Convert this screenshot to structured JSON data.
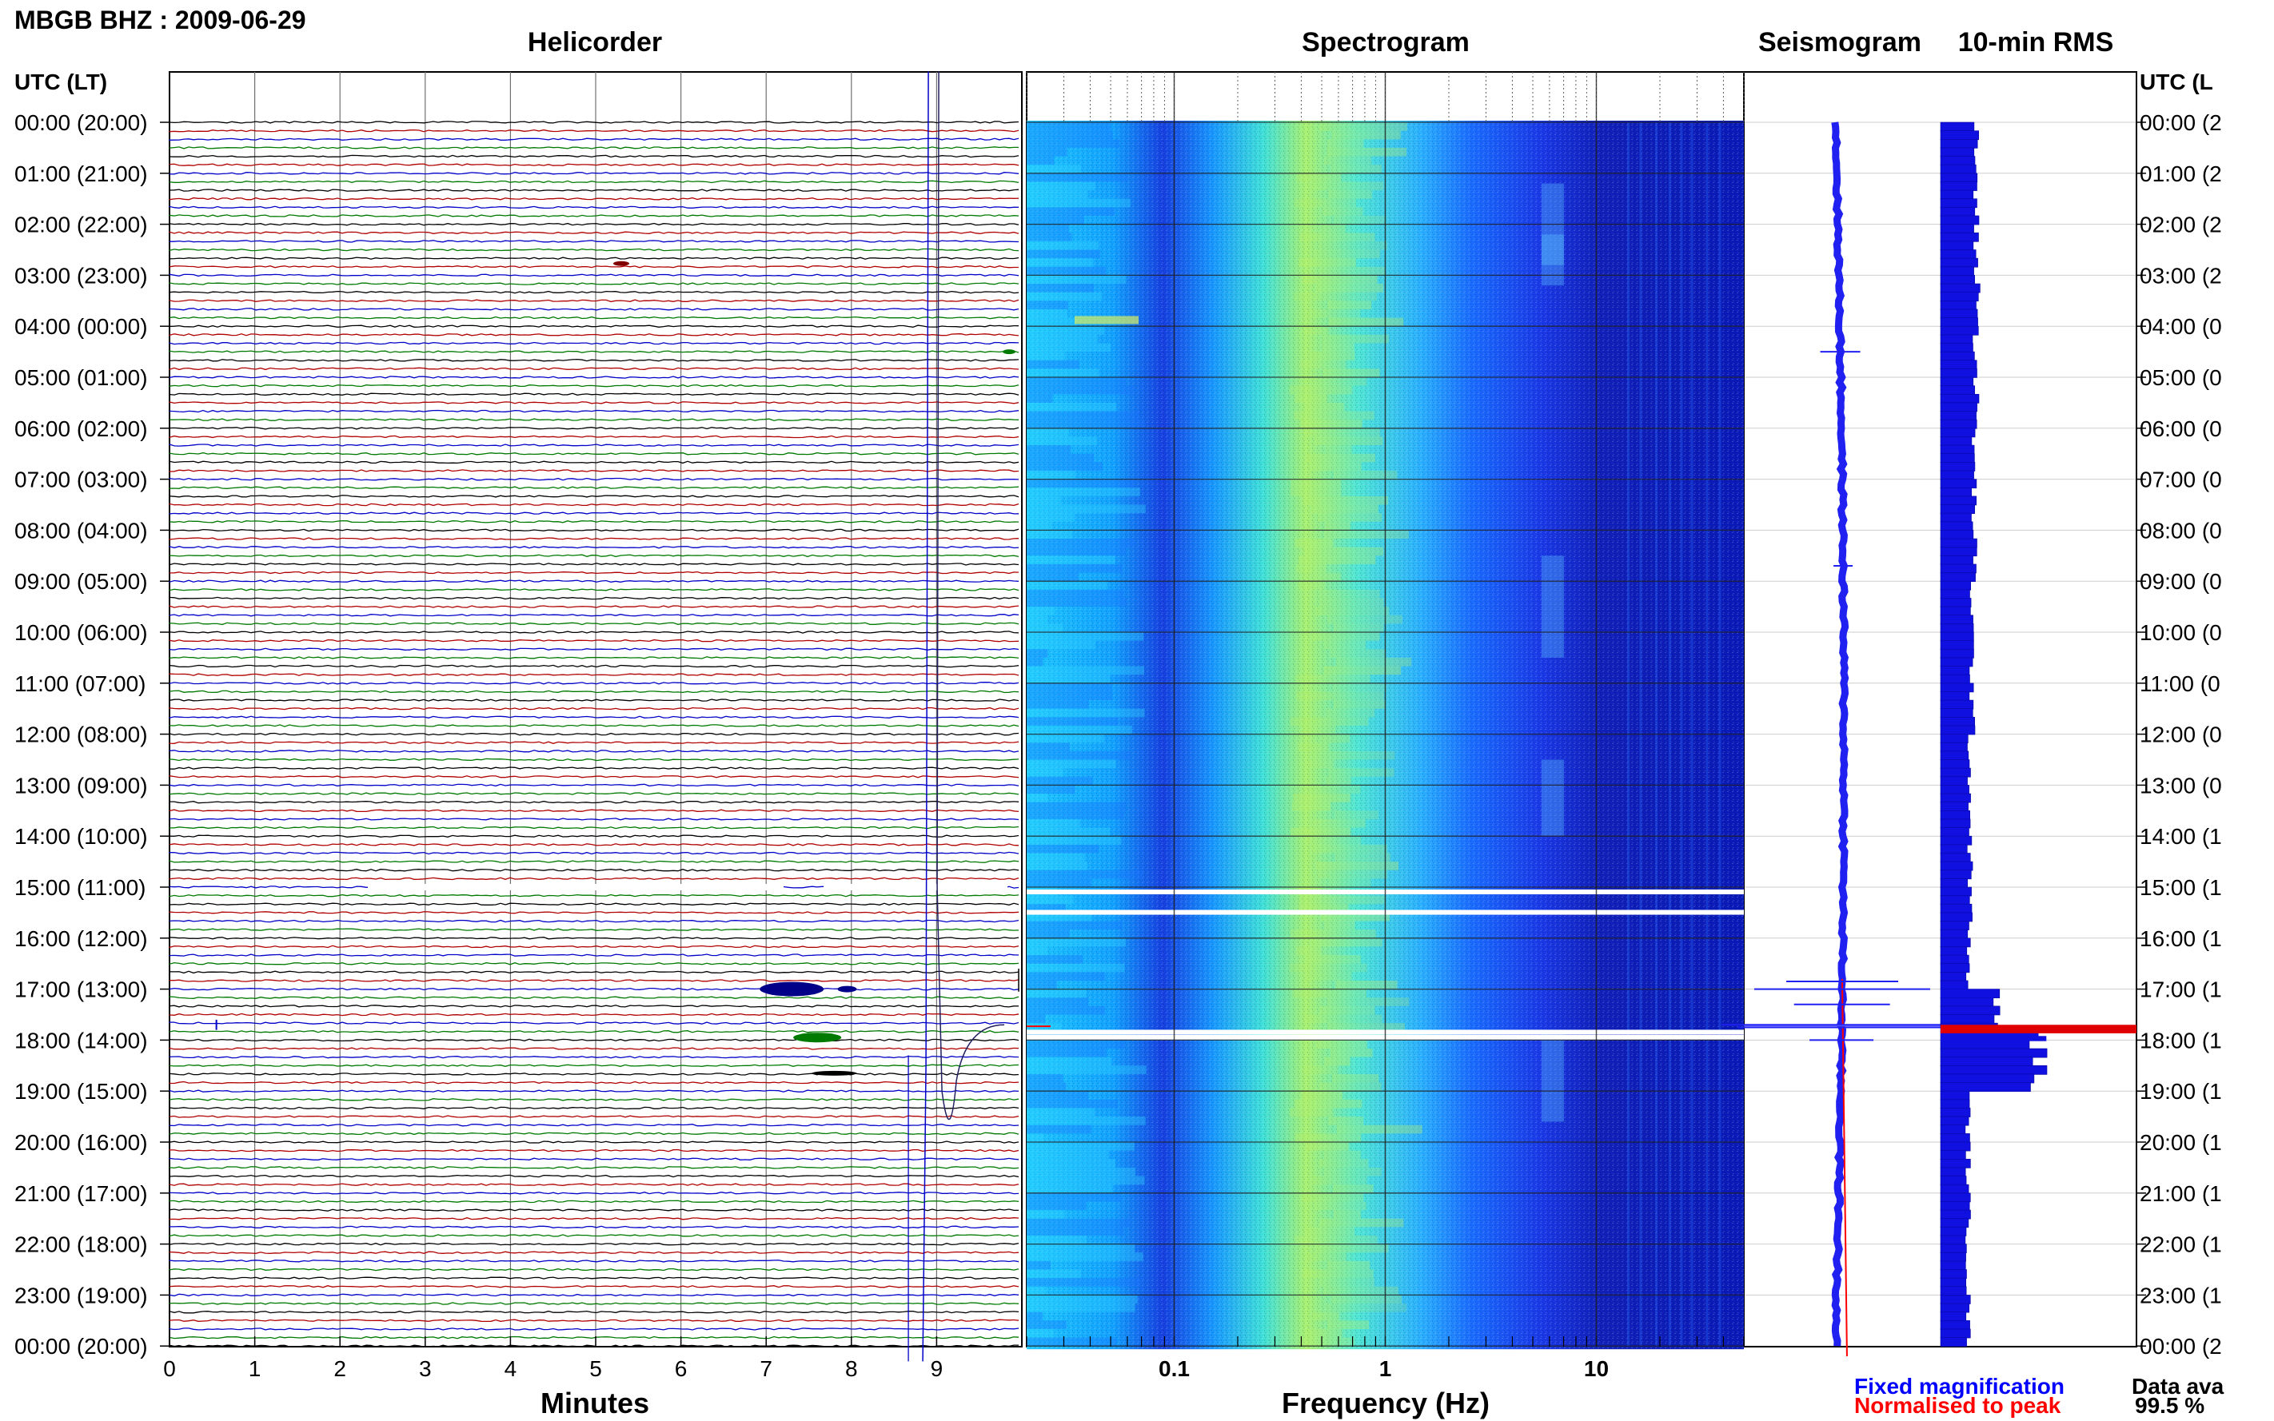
{
  "header": {
    "station_title": "MBGB BHZ : 2009-06-29",
    "panel_titles": {
      "helicorder": "Helicorder",
      "spectrogram": "Spectrogram",
      "seismogram": "Seismogram",
      "rms": "10-min RMS"
    },
    "left_axis_label": "UTC (LT)",
    "right_axis_label": "UTC (L"
  },
  "footer": {
    "x_label_minutes": "Minutes",
    "x_label_frequency": "Frequency (Hz)",
    "legend_fixed": "Fixed magnification",
    "legend_normalised": "Normalised to peak",
    "data_availability_label": "Data ava",
    "data_availability_value": "99.5 %"
  },
  "colors": {
    "trace_black": "#000000",
    "trace_red": "#b00000",
    "trace_blue": "#0000c8",
    "trace_green": "#007a00",
    "spectro_low": "#1a3cff",
    "spectro_mid": "#00d8e8",
    "spectro_high": "#c8f05a",
    "rms_bar": "#1010e0",
    "rms_peak": "#e00000",
    "gap": "#ffffff"
  },
  "chart_data": [
    {
      "type": "line",
      "name": "helicorder",
      "title": "Helicorder",
      "xlabel": "Minutes",
      "ylabel": "UTC (LT)",
      "x_ticks": [
        0,
        1,
        2,
        3,
        4,
        5,
        6,
        7,
        8,
        9
      ],
      "xlim": [
        0,
        10
      ],
      "y_tick_labels": [
        "00:00 (20:00)",
        "01:00 (21:00)",
        "02:00 (22:00)",
        "03:00 (23:00)",
        "04:00 (00:00)",
        "05:00 (01:00)",
        "06:00 (02:00)",
        "07:00 (03:00)",
        "08:00 (04:00)",
        "09:00 (05:00)",
        "10:00 (06:00)",
        "11:00 (07:00)",
        "12:00 (08:00)",
        "13:00 (09:00)",
        "14:00 (10:00)",
        "15:00 (11:00)",
        "16:00 (12:00)",
        "17:00 (13:00)",
        "18:00 (14:00)",
        "19:00 (15:00)",
        "20:00 (16:00)",
        "21:00 (17:00)",
        "22:00 (18:00)",
        "23:00 (19:00)",
        "00:00 (20:00)"
      ],
      "right_tick_labels": [
        "00:00 (2",
        "01:00 (2",
        "02:00 (2",
        "03:00 (2",
        "04:00 (0",
        "05:00 (0",
        "06:00 (0",
        "07:00 (0",
        "08:00 (0",
        "09:00 (0",
        "10:00 (0",
        "11:00 (0",
        "12:00 (0",
        "13:00 (0",
        "14:00 (1",
        "15:00 (1",
        "16:00 (1",
        "17:00 (1",
        "18:00 (1",
        "19:00 (1",
        "20:00 (1",
        "21:00 (1",
        "22:00 (1",
        "23:00 (1",
        "00:00 (2"
      ],
      "traces_per_hour": 6,
      "trace_color_cycle": [
        "black",
        "red",
        "blue",
        "green"
      ],
      "grid": true
    },
    {
      "type": "heatmap",
      "name": "spectrogram",
      "title": "Spectrogram",
      "xlabel": "Frequency (Hz)",
      "x_scale": "log",
      "xlim": [
        0.02,
        50
      ],
      "x_tick_labels": [
        "0.1",
        "1",
        "10"
      ],
      "x_tick_values": [
        0.1,
        1,
        10
      ],
      "gaps_hours": [
        15.0,
        15.4,
        17.75,
        17.85
      ]
    },
    {
      "type": "line",
      "name": "seismogram",
      "title": "Seismogram",
      "series": [
        "Fixed magnification",
        "Normalised to peak"
      ],
      "event_hour": 17.1
    },
    {
      "type": "bar",
      "name": "rms",
      "title": "10-min RMS",
      "orientation": "horizontal",
      "peak_hour": 17.7,
      "relative_values_by_hour": [
        0.18,
        0.18,
        0.18,
        0.19,
        0.18,
        0.18,
        0.17,
        0.17,
        0.17,
        0.16,
        0.16,
        0.16,
        0.15,
        0.15,
        0.15,
        0.15,
        0.14,
        0.28,
        0.5,
        0.14,
        0.14,
        0.14,
        0.14,
        0.14
      ],
      "peak_value": 1.0
    }
  ]
}
